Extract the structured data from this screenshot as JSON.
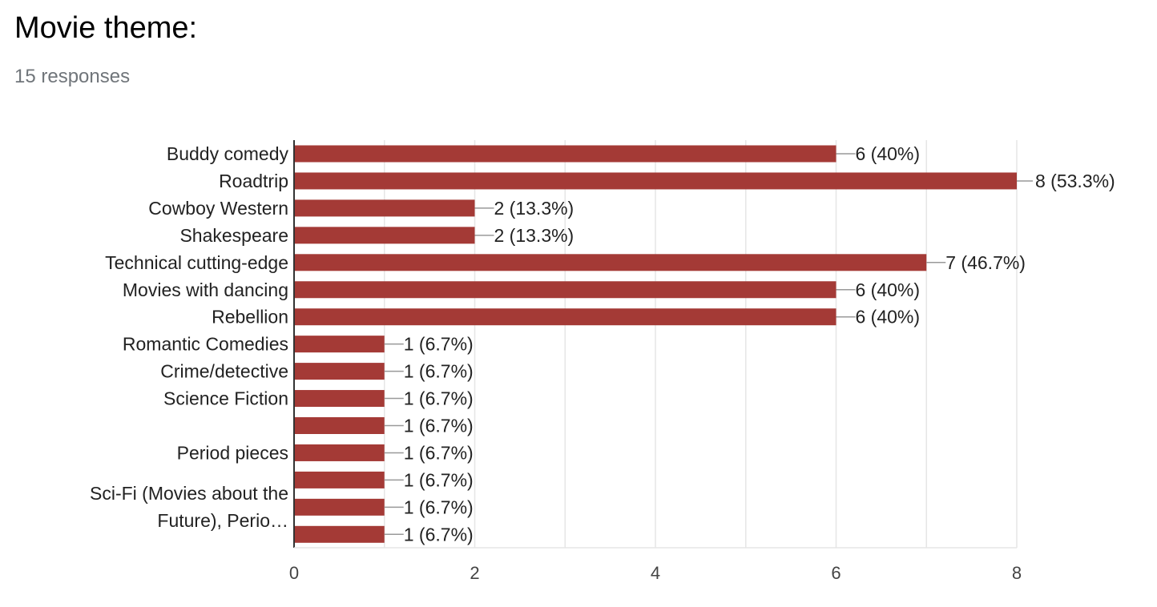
{
  "header": {
    "title": "Movie theme:",
    "subtitle": "15 responses"
  },
  "colors": {
    "bar": "#a43a36",
    "grid": "#e6e6e6",
    "axis": "#333333",
    "leader": "#999999"
  },
  "chart_data": {
    "type": "bar",
    "orientation": "horizontal",
    "title": "Movie theme:",
    "subtitle": "15 responses",
    "xlim": [
      0,
      8
    ],
    "x_ticks": [
      0,
      2,
      4,
      6,
      8
    ],
    "grid": true,
    "legend": "none",
    "categories": [
      "Buddy comedy",
      "Roadtrip",
      "Cowboy Western",
      "Shakespeare",
      "Technical cutting-edge",
      "Movies with dancing",
      "Rebellion",
      "Romantic Comedies",
      "Crime/detective",
      "Science Fiction",
      "",
      "Period pieces",
      "",
      "",
      ""
    ],
    "values": [
      6,
      8,
      2,
      2,
      7,
      6,
      6,
      1,
      1,
      1,
      1,
      1,
      1,
      1,
      1
    ],
    "data_labels": [
      "6 (40%)",
      "8 (53.3%)",
      "2 (13.3%)",
      "2 (13.3%)",
      "7 (46.7%)",
      "6 (40%)",
      "6 (40%)",
      "1 (6.7%)",
      "1 (6.7%)",
      "1 (6.7%)",
      "1 (6.7%)",
      "1 (6.7%)",
      "1 (6.7%)",
      "1 (6.7%)",
      "1 (6.7%)"
    ],
    "multiline_label": {
      "lines": [
        "Sci-Fi (Movies about the",
        "Future), Perio…"
      ]
    }
  }
}
